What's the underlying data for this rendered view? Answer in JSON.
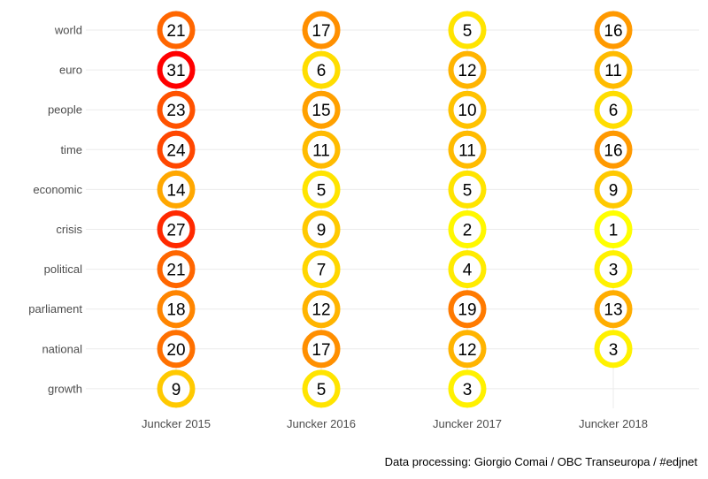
{
  "chart_data": {
    "type": "heatmap",
    "categories": [
      "world",
      "euro",
      "people",
      "time",
      "economic",
      "crisis",
      "political",
      "parliament",
      "national",
      "growth"
    ],
    "x": [
      "Juncker 2015",
      "Juncker 2016",
      "Juncker 2017",
      "Juncker 2018"
    ],
    "series": [
      {
        "name": "Juncker 2015",
        "values": [
          21,
          31,
          23,
          24,
          14,
          27,
          21,
          18,
          20,
          9
        ]
      },
      {
        "name": "Juncker 2016",
        "values": [
          17,
          6,
          15,
          11,
          5,
          9,
          7,
          12,
          17,
          5
        ]
      },
      {
        "name": "Juncker 2017",
        "values": [
          5,
          12,
          10,
          11,
          5,
          2,
          4,
          19,
          12,
          3
        ]
      },
      {
        "name": "Juncker 2018",
        "values": [
          16,
          11,
          6,
          16,
          9,
          1,
          3,
          13,
          3,
          null
        ]
      }
    ],
    "color_scale": {
      "low": "#ffff00",
      "mid": "#ff9900",
      "high": "#ff0000",
      "min": 1,
      "max": 31
    },
    "grid": true
  },
  "caption": "Data processing:  Giorgio Comai / OBC Transeuropa / #edjnet"
}
